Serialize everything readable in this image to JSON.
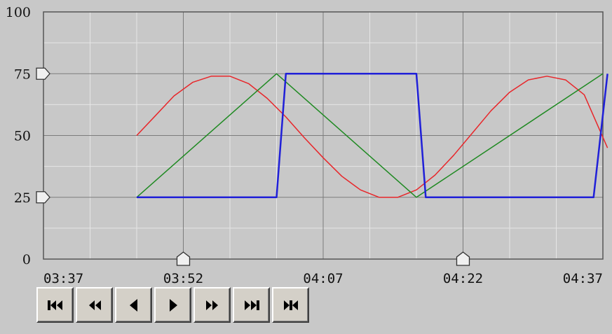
{
  "chart_data": {
    "type": "line",
    "x_tick_labels": [
      "03:37",
      "03:52",
      "04:07",
      "04:22",
      "04:37"
    ],
    "y_tick_labels": [
      "100",
      "75",
      "50",
      "25",
      "0"
    ],
    "xlim_minutes": [
      0,
      60
    ],
    "ylim": [
      0,
      100
    ],
    "grid": true,
    "colors": {
      "background": "#c8c8c8",
      "plot_area": "#c8c8c8",
      "grid_major": "#7c7c7c",
      "grid_minor": "#e6e6e6",
      "series_1": "#e8262a",
      "series_2": "#1f8a22",
      "series_3": "#2020d8"
    },
    "series": [
      {
        "color": "#e8262a",
        "x": [
          10,
          12,
          14,
          16,
          18,
          20,
          22,
          24,
          26,
          28,
          30,
          32,
          34,
          36,
          38,
          40,
          42,
          44,
          46,
          48,
          50,
          52,
          54,
          56,
          58,
          60.5
        ],
        "y": [
          50,
          58,
          66,
          71.5,
          74,
          74,
          71,
          65,
          57.5,
          49,
          41,
          33.5,
          28,
          25,
          25,
          28,
          34,
          42,
          51,
          60,
          67.5,
          72.5,
          74,
          72.5,
          66.5,
          45
        ]
      },
      {
        "color": "#1f8a22",
        "x": [
          10,
          25,
          40,
          60
        ],
        "y": [
          25,
          75,
          25,
          75
        ]
      },
      {
        "color": "#2020d8",
        "x": [
          10,
          25,
          26,
          40,
          41,
          59,
          60.5
        ],
        "y": [
          25,
          25,
          75,
          75,
          25,
          25,
          75
        ]
      }
    ],
    "y_markers": [
      75,
      25
    ],
    "x_markers": [
      15,
      45
    ]
  },
  "toolbar": {
    "buttons": [
      {
        "name": "first-button",
        "icon": "skip-to-start-icon"
      },
      {
        "name": "fast-back-button",
        "icon": "fast-rewind-icon"
      },
      {
        "name": "back-button",
        "icon": "step-back-icon"
      },
      {
        "name": "play-button",
        "icon": "play-icon"
      },
      {
        "name": "fast-forward-button",
        "icon": "fast-forward-icon"
      },
      {
        "name": "last-button",
        "icon": "skip-to-end-icon"
      },
      {
        "name": "zoom-fit-button",
        "icon": "fit-range-icon"
      }
    ]
  }
}
